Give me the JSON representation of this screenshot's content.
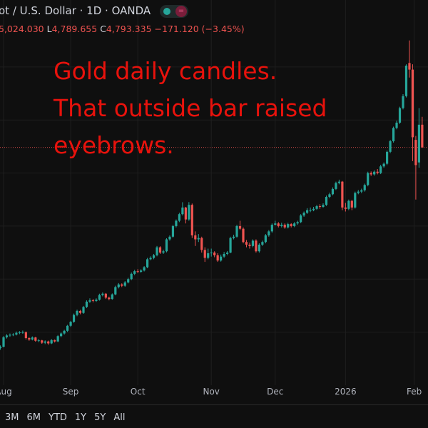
{
  "header": {
    "title": "ot / U.S. Dollar · 1D · OANDA",
    "ohlc_text": {
      "high_value": "5,024.030",
      "low_label": "L",
      "low_value": "4,789.655",
      "close_label": "C",
      "close_value": "4,793.335",
      "change": "−171.120 (−3.45%)"
    }
  },
  "annotation": [
    "Gold daily candles.",
    "That outside bar raised",
    "eyebrows."
  ],
  "range_buttons": [
    "3M",
    "6M",
    "YTD",
    "1Y",
    "5Y",
    "All"
  ],
  "colors": {
    "up": "#26a69a",
    "down": "#ef5350",
    "annotation": "#e8120c",
    "background": "#0f0f0f"
  },
  "chart_data": {
    "type": "candlestick",
    "title": "",
    "ylim": [
      3000,
      5905
    ],
    "grid": true,
    "y_gridlines": [
      3400,
      3800,
      4200,
      4600,
      5000,
      5400
    ],
    "last_price_line": 4793.335,
    "xticks": [
      {
        "label": "Aug",
        "index": 1
      },
      {
        "label": "Sep",
        "index": 22
      },
      {
        "label": "Oct",
        "index": 43
      },
      {
        "label": "Nov",
        "index": 66
      },
      {
        "label": "Dec",
        "index": 86
      },
      {
        "label": "2026",
        "index": 108
      },
      {
        "label": "Feb",
        "index": 129.5
      }
    ],
    "candles": [
      [
        3280,
        3300,
        3268,
        3290
      ],
      [
        3290,
        3370,
        3285,
        3362
      ],
      [
        3362,
        3385,
        3352,
        3375
      ],
      [
        3375,
        3390,
        3365,
        3380
      ],
      [
        3380,
        3392,
        3370,
        3382
      ],
      [
        3382,
        3405,
        3375,
        3395
      ],
      [
        3395,
        3408,
        3385,
        3398
      ],
      [
        3398,
        3412,
        3388,
        3400
      ],
      [
        3400,
        3405,
        3345,
        3355
      ],
      [
        3355,
        3362,
        3335,
        3345
      ],
      [
        3345,
        3368,
        3338,
        3360
      ],
      [
        3360,
        3365,
        3328,
        3335
      ],
      [
        3335,
        3348,
        3325,
        3338
      ],
      [
        3338,
        3342,
        3312,
        3320
      ],
      [
        3320,
        3338,
        3310,
        3330
      ],
      [
        3330,
        3336,
        3305,
        3315
      ],
      [
        3315,
        3348,
        3310,
        3340
      ],
      [
        3340,
        3345,
        3322,
        3330
      ],
      [
        3330,
        3378,
        3325,
        3370
      ],
      [
        3370,
        3398,
        3362,
        3390
      ],
      [
        3390,
        3418,
        3382,
        3410
      ],
      [
        3410,
        3455,
        3402,
        3448
      ],
      [
        3448,
        3485,
        3440,
        3478
      ],
      [
        3478,
        3540,
        3470,
        3530
      ],
      [
        3530,
        3570,
        3520,
        3560
      ],
      [
        3560,
        3568,
        3535,
        3545
      ],
      [
        3545,
        3598,
        3538,
        3590
      ],
      [
        3590,
        3640,
        3582,
        3630
      ],
      [
        3630,
        3655,
        3620,
        3640
      ],
      [
        3640,
        3650,
        3625,
        3635
      ],
      [
        3635,
        3655,
        3628,
        3645
      ],
      [
        3645,
        3690,
        3638,
        3680
      ],
      [
        3680,
        3700,
        3670,
        3690
      ],
      [
        3690,
        3695,
        3650,
        3660
      ],
      [
        3660,
        3668,
        3640,
        3650
      ],
      [
        3650,
        3692,
        3645,
        3685
      ],
      [
        3685,
        3750,
        3678,
        3740
      ],
      [
        3740,
        3770,
        3730,
        3760
      ],
      [
        3760,
        3768,
        3740,
        3750
      ],
      [
        3750,
        3785,
        3742,
        3775
      ],
      [
        3775,
        3810,
        3768,
        3800
      ],
      [
        3800,
        3850,
        3792,
        3840
      ],
      [
        3840,
        3870,
        3830,
        3860
      ],
      [
        3860,
        3875,
        3845,
        3855
      ],
      [
        3855,
        3875,
        3848,
        3865
      ],
      [
        3865,
        3898,
        3858,
        3890
      ],
      [
        3890,
        3960,
        3882,
        3950
      ],
      [
        3950,
        3972,
        3942,
        3960
      ],
      [
        3960,
        3990,
        3950,
        3980
      ],
      [
        3980,
        4050,
        3972,
        4040
      ],
      [
        4040,
        4048,
        3990,
        4000
      ],
      [
        4000,
        4022,
        3990,
        4010
      ],
      [
        4010,
        4108,
        4002,
        4100
      ],
      [
        4100,
        4130,
        4090,
        4120
      ],
      [
        4120,
        4210,
        4112,
        4200
      ],
      [
        4200,
        4250,
        4190,
        4240
      ],
      [
        4240,
        4300,
        4230,
        4290
      ],
      [
        4290,
        4380,
        4280,
        4340
      ],
      [
        4340,
        4345,
        4220,
        4250
      ],
      [
        4250,
        4381,
        4240,
        4360
      ],
      [
        4360,
        4370,
        4110,
        4130
      ],
      [
        4130,
        4160,
        4050,
        4100
      ],
      [
        4100,
        4140,
        4080,
        4110
      ],
      [
        4110,
        4120,
        4000,
        4020
      ],
      [
        4020,
        4040,
        3930,
        3960
      ],
      [
        3960,
        4030,
        3950,
        3995
      ],
      [
        3995,
        4030,
        3970,
        4000
      ],
      [
        4000,
        4010,
        3965,
        3980
      ],
      [
        3980,
        3995,
        3930,
        3940
      ],
      [
        3940,
        3985,
        3932,
        3970
      ],
      [
        3970,
        4005,
        3960,
        3990
      ],
      [
        3990,
        4012,
        3980,
        4000
      ],
      [
        4000,
        4120,
        3995,
        4110
      ],
      [
        4110,
        4135,
        4100,
        4120
      ],
      [
        4120,
        4210,
        4112,
        4200
      ],
      [
        4200,
        4240,
        4170,
        4180
      ],
      [
        4180,
        4190,
        4070,
        4080
      ],
      [
        4080,
        4095,
        4040,
        4060
      ],
      [
        4060,
        4075,
        4030,
        4050
      ],
      [
        4050,
        4100,
        4040,
        4090
      ],
      [
        4090,
        4100,
        4000,
        4010
      ],
      [
        4010,
        4070,
        4000,
        4060
      ],
      [
        4060,
        4090,
        4050,
        4080
      ],
      [
        4080,
        4140,
        4070,
        4130
      ],
      [
        4130,
        4170,
        4120,
        4160
      ],
      [
        4160,
        4220,
        4150,
        4210
      ],
      [
        4210,
        4240,
        4205,
        4220
      ],
      [
        4220,
        4230,
        4190,
        4200
      ],
      [
        4200,
        4225,
        4190,
        4210
      ],
      [
        4210,
        4220,
        4180,
        4190
      ],
      [
        4190,
        4225,
        4182,
        4215
      ],
      [
        4215,
        4222,
        4190,
        4200
      ],
      [
        4200,
        4230,
        4192,
        4220
      ],
      [
        4220,
        4240,
        4210,
        4230
      ],
      [
        4230,
        4290,
        4222,
        4280
      ],
      [
        4280,
        4310,
        4270,
        4300
      ],
      [
        4300,
        4335,
        4292,
        4320
      ],
      [
        4320,
        4340,
        4305,
        4320
      ],
      [
        4320,
        4345,
        4312,
        4330
      ],
      [
        4330,
        4360,
        4322,
        4350
      ],
      [
        4350,
        4365,
        4330,
        4345
      ],
      [
        4345,
        4372,
        4338,
        4360
      ],
      [
        4360,
        4430,
        4352,
        4420
      ],
      [
        4420,
        4452,
        4410,
        4440
      ],
      [
        4440,
        4492,
        4432,
        4480
      ],
      [
        4480,
        4535,
        4472,
        4525
      ],
      [
        4525,
        4550,
        4515,
        4535
      ],
      [
        4535,
        4540,
        4320,
        4340
      ],
      [
        4340,
        4375,
        4310,
        4330
      ],
      [
        4330,
        4400,
        4320,
        4390
      ],
      [
        4390,
        4398,
        4320,
        4340
      ],
      [
        4340,
        4460,
        4332,
        4450
      ],
      [
        4450,
        4472,
        4440,
        4460
      ],
      [
        4460,
        4482,
        4448,
        4470
      ],
      [
        4470,
        4520,
        4460,
        4510
      ],
      [
        4510,
        4610,
        4500,
        4600
      ],
      [
        4600,
        4612,
        4578,
        4590
      ],
      [
        4590,
        4620,
        4580,
        4610
      ],
      [
        4610,
        4630,
        4590,
        4600
      ],
      [
        4600,
        4662,
        4592,
        4650
      ],
      [
        4650,
        4680,
        4640,
        4670
      ],
      [
        4670,
        4770,
        4660,
        4760
      ],
      [
        4760,
        4850,
        4750,
        4840
      ],
      [
        4840,
        4950,
        4830,
        4940
      ],
      [
        4940,
        4995,
        4930,
        4980
      ],
      [
        4980,
        5100,
        4970,
        5090
      ],
      [
        5090,
        5195,
        5080,
        5180
      ],
      [
        5180,
        5420,
        5170,
        5410
      ],
      [
        5430,
        5600,
        5320,
        5380
      ],
      [
        5380,
        5420,
        4690,
        4870
      ],
      [
        4850,
        4880,
        4400,
        4660
      ],
      [
        4680,
        5090,
        4640,
        4964.455
      ],
      [
        4964.455,
        5024.03,
        4789.655,
        4793.335
      ]
    ]
  }
}
